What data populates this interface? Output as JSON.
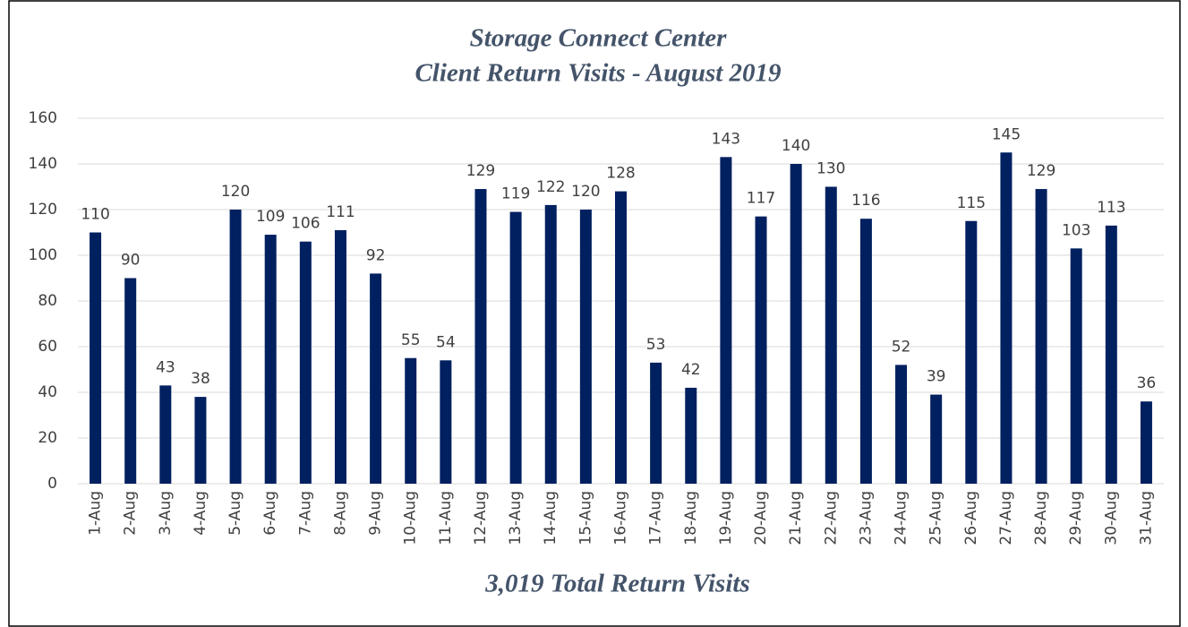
{
  "chart_data": {
    "type": "bar",
    "title": "Storage Connect Center",
    "subtitle": "Client Return Visits - August 2019",
    "annotation": "3,019 Total Return Visits",
    "categories": [
      "1-Aug",
      "2-Aug",
      "3-Aug",
      "4-Aug",
      "5-Aug",
      "6-Aug",
      "7-Aug",
      "8-Aug",
      "9-Aug",
      "10-Aug",
      "11-Aug",
      "12-Aug",
      "13-Aug",
      "14-Aug",
      "15-Aug",
      "16-Aug",
      "17-Aug",
      "18-Aug",
      "19-Aug",
      "20-Aug",
      "21-Aug",
      "22-Aug",
      "23-Aug",
      "24-Aug",
      "25-Aug",
      "26-Aug",
      "27-Aug",
      "28-Aug",
      "29-Aug",
      "30-Aug",
      "31-Aug"
    ],
    "values": [
      110,
      90,
      43,
      38,
      120,
      109,
      106,
      111,
      92,
      55,
      54,
      129,
      119,
      122,
      120,
      128,
      53,
      42,
      143,
      117,
      140,
      130,
      116,
      52,
      39,
      115,
      145,
      129,
      103,
      113,
      36
    ],
    "color": "#002060",
    "ylim": [
      0,
      160
    ],
    "yticks": [
      0,
      20,
      40,
      60,
      80,
      100,
      120,
      140,
      160
    ],
    "grid": true
  }
}
